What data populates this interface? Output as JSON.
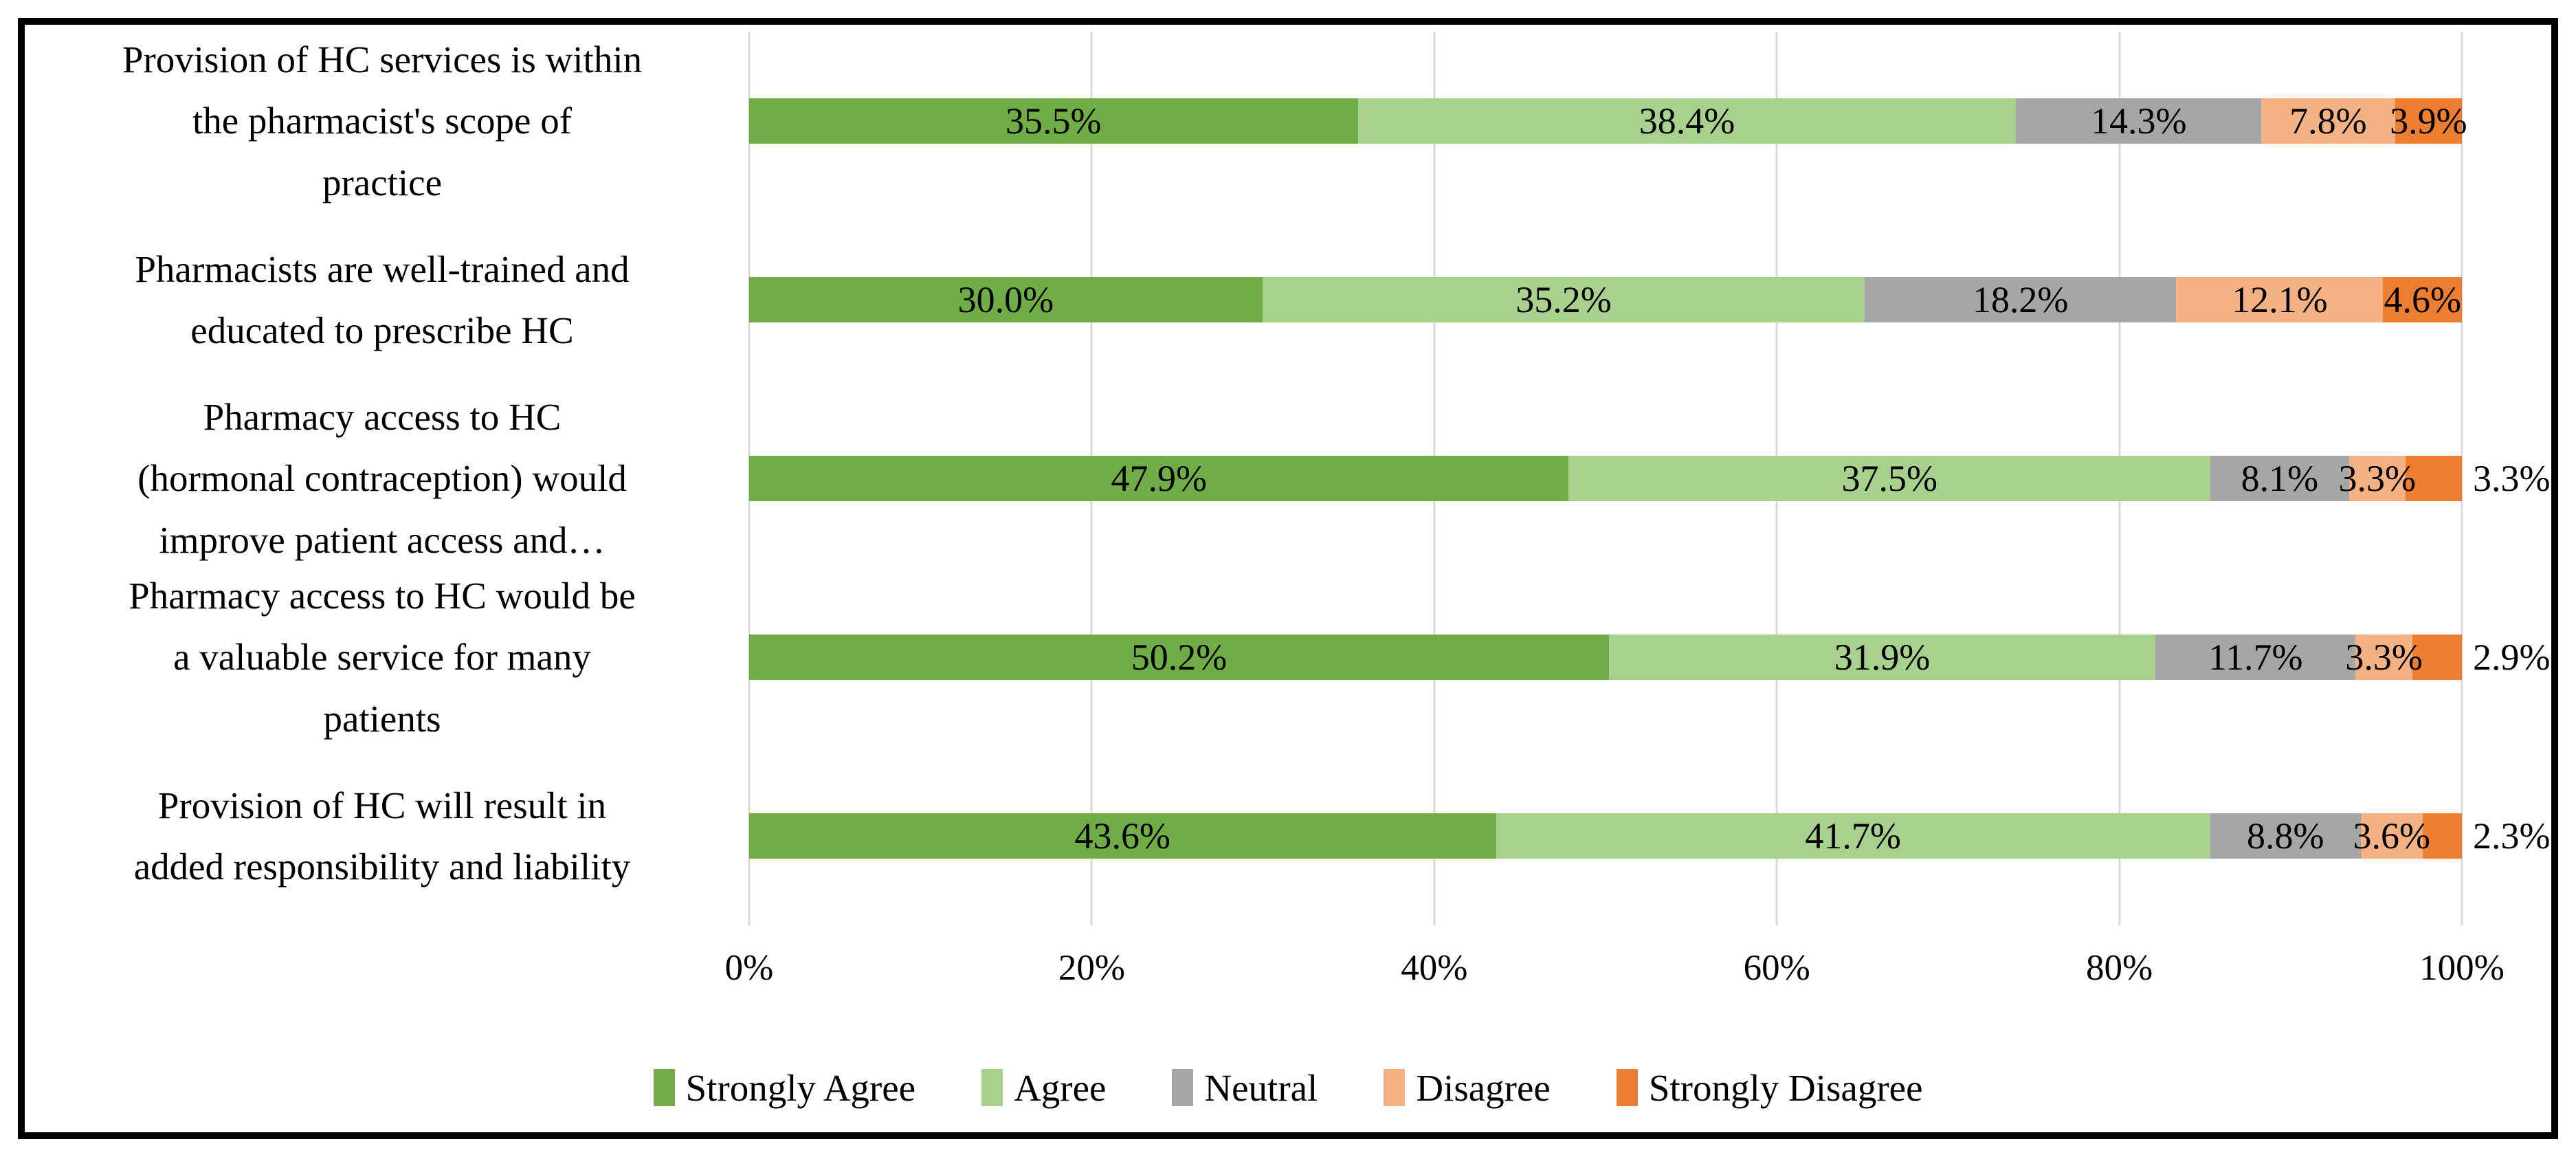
{
  "figure": {
    "background": "#ffffff",
    "border_color": "#000000",
    "title": ""
  },
  "chart_data": {
    "type": "bar",
    "stacked": true,
    "orientation": "horizontal",
    "title": "",
    "xlabel": "",
    "ylabel": "",
    "xlim": [
      0,
      100
    ],
    "x_ticks": [
      "0%",
      "20%",
      "40%",
      "60%",
      "80%",
      "100%"
    ],
    "gridlines": "vertical",
    "gridline_color": "#d9d9d9",
    "legend_position": "bottom",
    "categories": [
      "Provision of HC services is within\nthe pharmacist's scope of\npractice",
      "Pharmacists are well-trained and\neducated to prescribe HC",
      "Pharmacy access to HC\n(hormonal contraception) would\nimprove patient access and…",
      "Pharmacy access to HC would be\na valuable service for many\npatients",
      "Provision of HC will result in\nadded responsibility and liability"
    ],
    "series": [
      {
        "name": "Strongly Agree",
        "color": "#70AD47",
        "values": [
          35.5,
          30.0,
          47.9,
          50.2,
          43.6
        ]
      },
      {
        "name": "Agree",
        "color": "#A9D18E",
        "values": [
          38.4,
          35.2,
          37.5,
          31.9,
          41.7
        ]
      },
      {
        "name": "Neutral",
        "color": "#A6A6A6",
        "values": [
          14.3,
          18.2,
          8.1,
          11.7,
          8.8
        ]
      },
      {
        "name": "Disagree",
        "color": "#F4B183",
        "values": [
          7.8,
          12.1,
          3.3,
          3.3,
          3.6
        ]
      },
      {
        "name": "Strongly Disagree",
        "color": "#ED7D31",
        "values": [
          3.9,
          4.6,
          3.3,
          2.9,
          2.3
        ]
      }
    ],
    "value_label_suffix": "%",
    "outside_end_labels": [
      false,
      false,
      true,
      true,
      true
    ]
  }
}
